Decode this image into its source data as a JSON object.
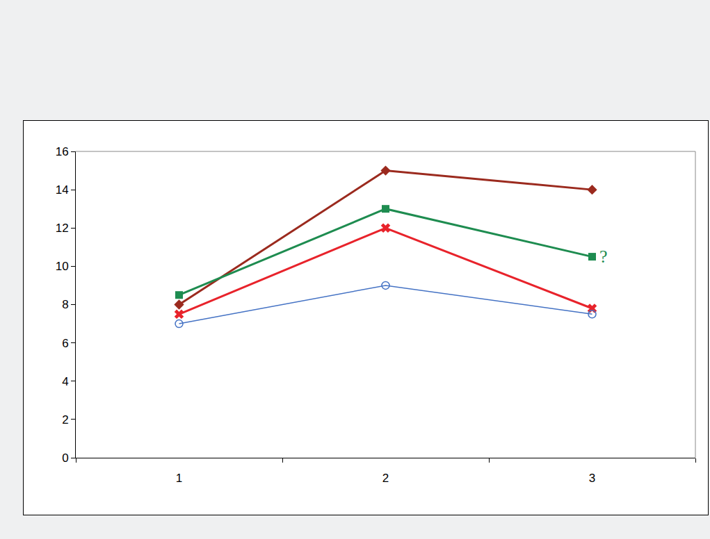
{
  "chart_data": {
    "type": "line",
    "categories": [
      "1",
      "2",
      "3"
    ],
    "series": [
      {
        "color": "#9b2a1e",
        "marker": "diamond",
        "line_style": "solid",
        "values": [
          8,
          15,
          14
        ]
      },
      {
        "color": "#1e8c50",
        "marker": "square",
        "line_style": "solid",
        "values": [
          8.5,
          13,
          10.5
        ]
      },
      {
        "color": "#e8232b",
        "marker": "x",
        "line_style": "solid",
        "values": [
          7.5,
          12,
          7.8
        ]
      },
      {
        "color": "#4472c4",
        "marker": "circle-open",
        "line_style": "solid",
        "values": [
          7,
          9,
          7.5
        ]
      }
    ],
    "ylim": [
      0,
      16
    ],
    "yticks": [
      0,
      2,
      4,
      6,
      8,
      10,
      12,
      14,
      16
    ],
    "grid": false,
    "annotations": [
      {
        "text": "?",
        "x": "3",
        "y": 10.5,
        "color": "#1e8c50"
      }
    ]
  }
}
